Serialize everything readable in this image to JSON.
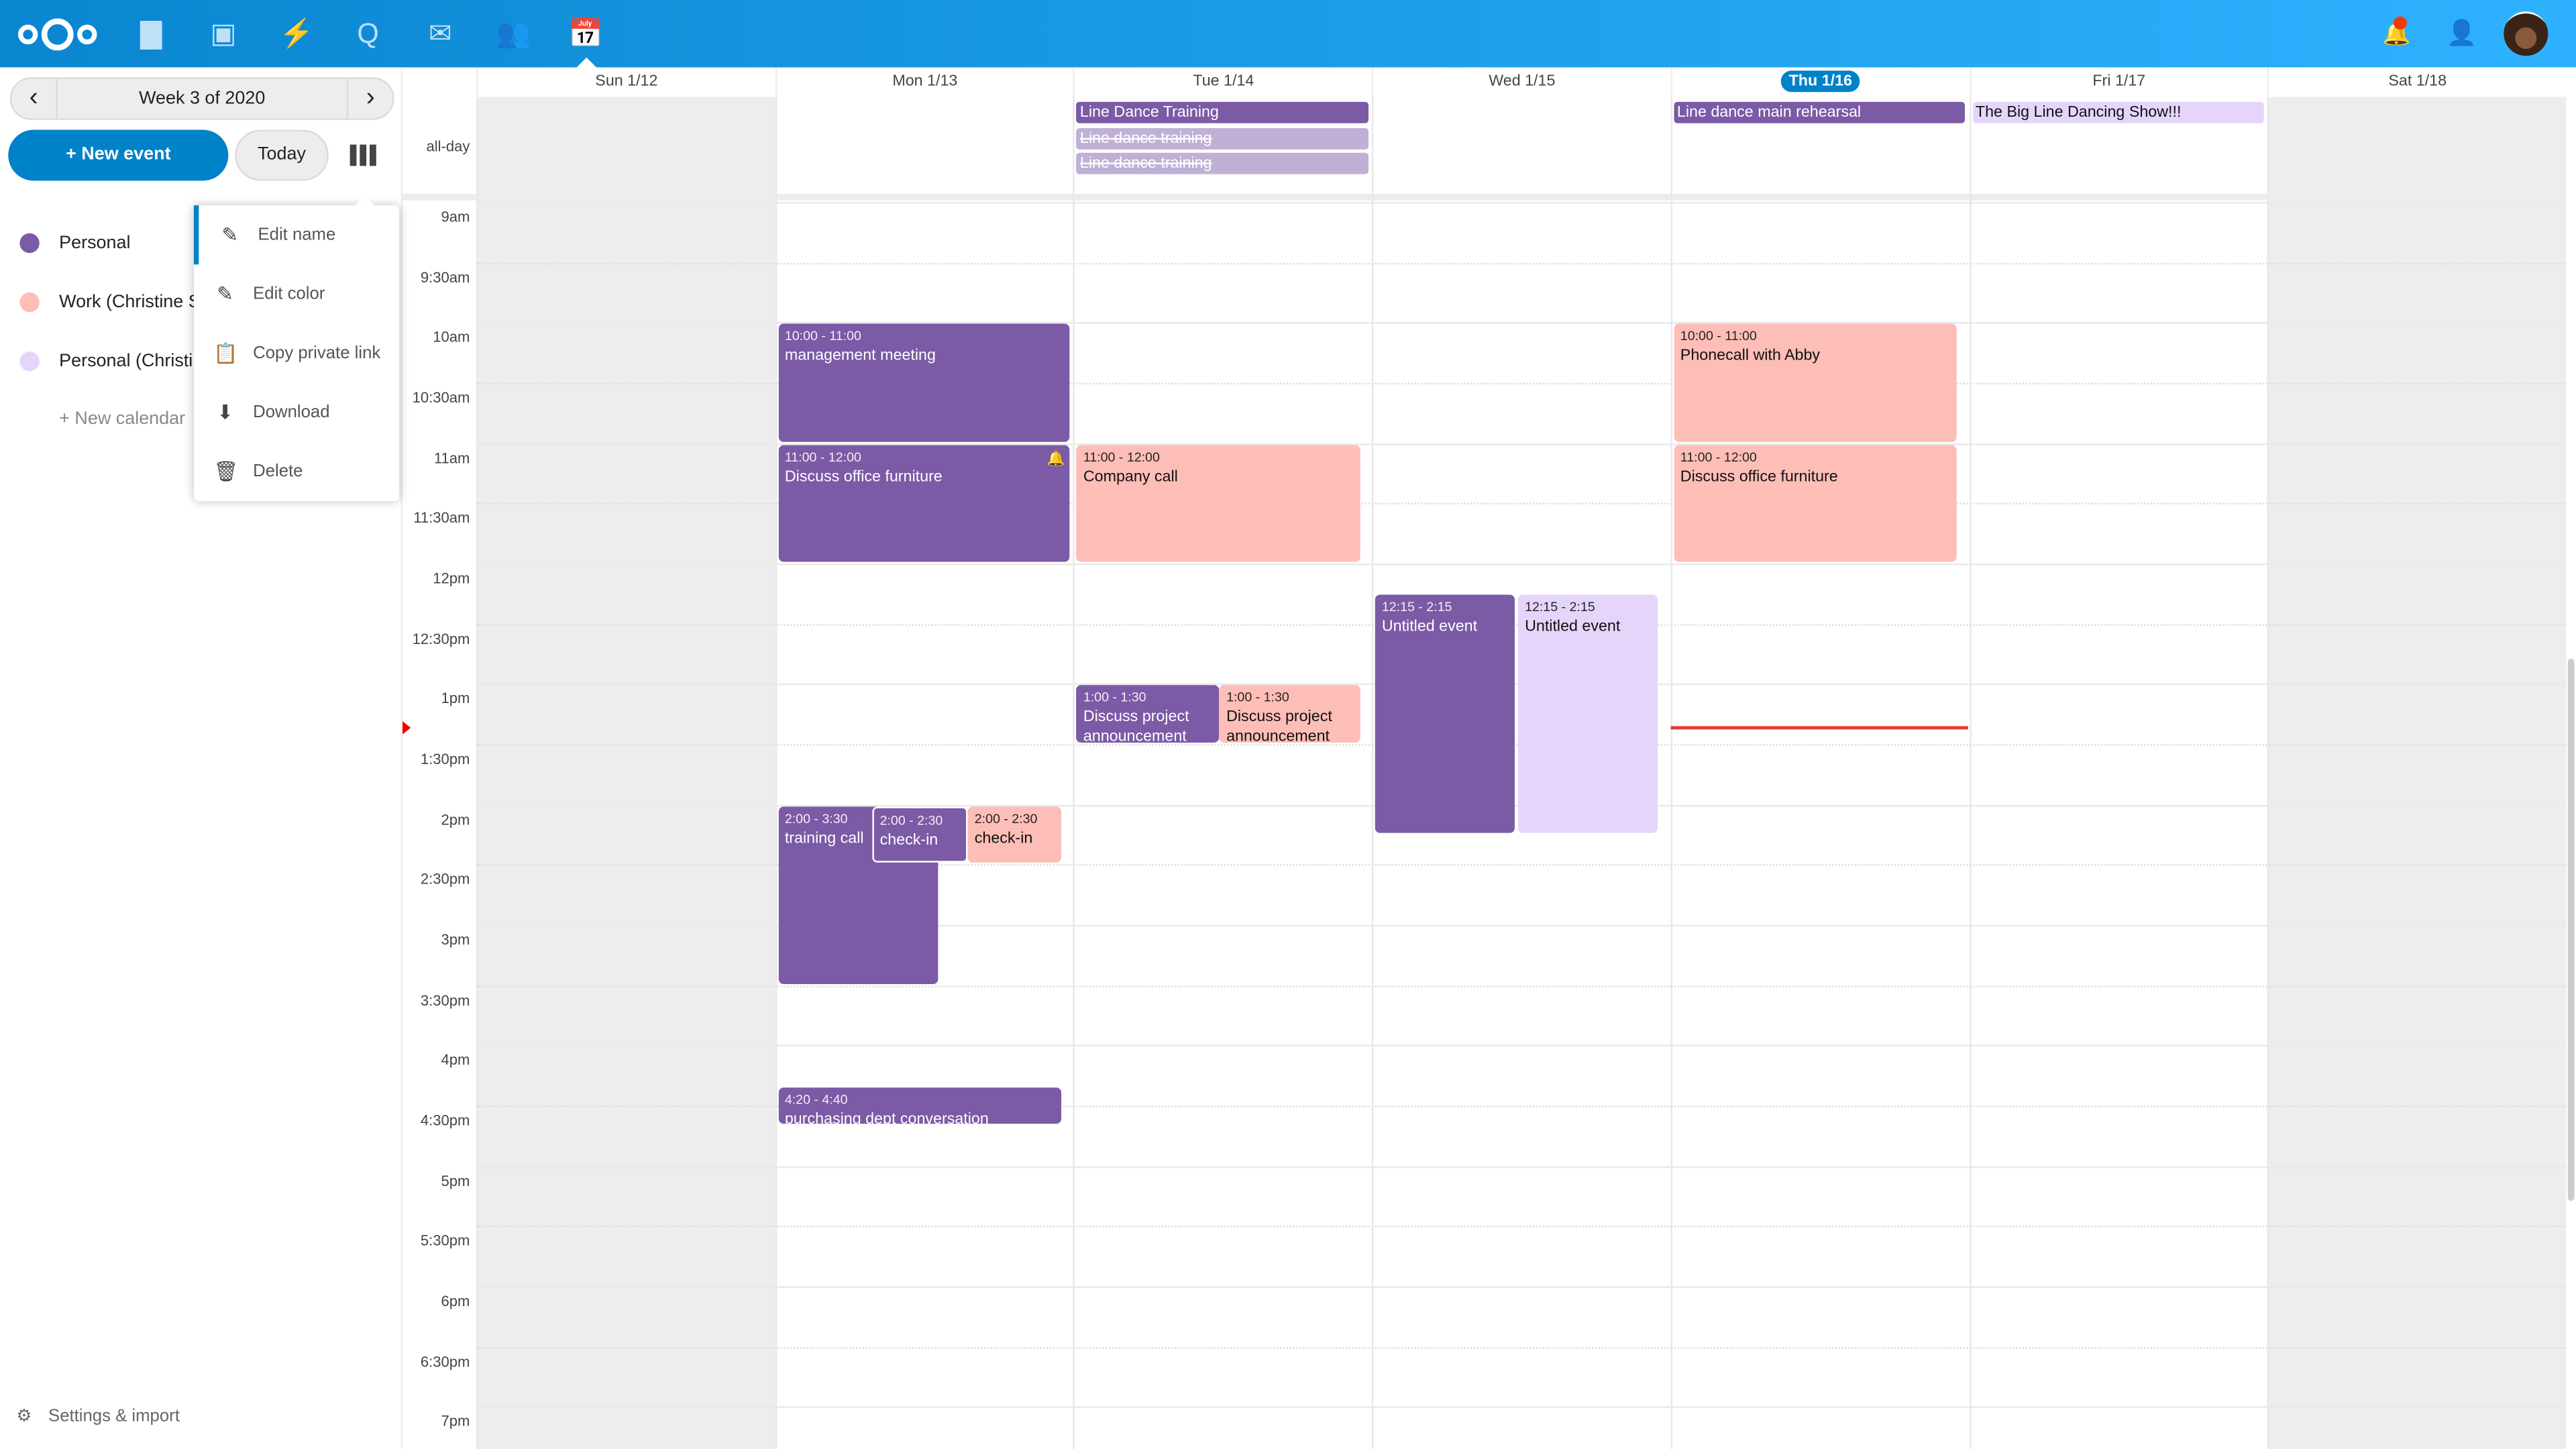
{
  "header": {
    "apps": [
      {
        "name": "files",
        "glyph": "▇"
      },
      {
        "name": "photos",
        "glyph": "▣"
      },
      {
        "name": "activity",
        "glyph": "⚡"
      },
      {
        "name": "talk",
        "glyph": "Q"
      },
      {
        "name": "mail",
        "glyph": "✉"
      },
      {
        "name": "contacts",
        "glyph": "👥"
      },
      {
        "name": "calendar",
        "glyph": "📅"
      }
    ],
    "active_app": "calendar",
    "notification_badge": true
  },
  "sidebar": {
    "week_label": "Week 3 of 2020",
    "prev": "‹",
    "next": "›",
    "new_event": "+ New event",
    "today": "Today",
    "calendars": [
      {
        "name": "Personal",
        "color": "#7b5aa6"
      },
      {
        "name": "Work (Christine S",
        "color": "#fdbeb7"
      },
      {
        "name": "Personal (Christi",
        "color": "#e5d5fb"
      }
    ],
    "new_calendar": "+ New calendar",
    "menu": [
      {
        "icon": "pencil",
        "glyph": "✎",
        "label": "Edit name"
      },
      {
        "icon": "pencil",
        "glyph": "✎",
        "label": "Edit color"
      },
      {
        "icon": "clipboard",
        "glyph": "📋",
        "label": "Copy private link"
      },
      {
        "icon": "download",
        "glyph": "⬇",
        "label": "Download"
      },
      {
        "icon": "trash",
        "glyph": "🗑",
        "label": "Delete"
      }
    ],
    "settings": "Settings & import"
  },
  "calendar": {
    "all_day_label": "all-day",
    "days": [
      "Sun 1/12",
      "Mon 1/13",
      "Tue 1/14",
      "Wed 1/15",
      "Thu 1/16",
      "Fri 1/17",
      "Sat 1/18"
    ],
    "today_index": 4,
    "time_labels": [
      "9am",
      "9:30am",
      "10am",
      "10:30am",
      "11am",
      "11:30am",
      "12pm",
      "12:30pm",
      "1pm",
      "1:30pm",
      "2pm",
      "2:30pm",
      "3pm",
      "3:30pm",
      "4pm",
      "4:30pm",
      "5pm",
      "5:30pm",
      "6pm",
      "6:30pm",
      "7pm"
    ],
    "all_day_events": [
      {
        "day": 2,
        "title": "Line Dance Training",
        "style": "purple"
      },
      {
        "day": 2,
        "title": "Line dance training",
        "style": "strike"
      },
      {
        "day": 2,
        "title": "Line dance training",
        "style": "strike"
      },
      {
        "day": 4,
        "title": "Line dance main rehearsal",
        "style": "purple"
      },
      {
        "day": 5,
        "title": "The Big Line Dancing Show!!!",
        "style": "lav"
      }
    ],
    "events": [
      {
        "day": 1,
        "time": "10:00 - 11:00",
        "title": "management meeting",
        "color": "purple",
        "start": 10,
        "end": 11
      },
      {
        "day": 1,
        "time": "11:00 - 12:00",
        "title": "Discuss office furniture",
        "color": "purple",
        "start": 11,
        "end": 12,
        "reminder": true
      },
      {
        "day": 2,
        "time": "11:00 - 12:00",
        "title": "Company call",
        "color": "pink",
        "start": 11,
        "end": 12
      },
      {
        "day": 4,
        "time": "10:00 - 11:00",
        "title": "Phonecall with Abby",
        "color": "pink",
        "start": 10,
        "end": 11
      },
      {
        "day": 4,
        "time": "11:00 - 12:00",
        "title": "Discuss office furniture",
        "color": "pink",
        "start": 11,
        "end": 12
      },
      {
        "day": 3,
        "time": "12:15 - 2:15",
        "title": "Untitled event",
        "color": "purple",
        "start": 12.25,
        "end": 14.25
      },
      {
        "day": 3,
        "time": "12:15 - 2:15",
        "title": "Untitled event",
        "color": "lav",
        "start": 12.25,
        "end": 14.25
      },
      {
        "day": 2,
        "time": "1:00 - 1:30",
        "title": "Discuss project announcement",
        "color": "purple",
        "start": 13,
        "end": 13.5
      },
      {
        "day": 2,
        "time": "1:00 - 1:30",
        "title": "Discuss project announcement",
        "color": "pink",
        "start": 13,
        "end": 13.5
      },
      {
        "day": 1,
        "time": "2:00 - 3:30",
        "title": "training call",
        "color": "purple",
        "start": 14,
        "end": 15.5
      },
      {
        "day": 1,
        "time": "2:00 - 2:30",
        "title": "check-in",
        "color": "purple",
        "start": 14,
        "end": 14.5
      },
      {
        "day": 1,
        "time": "2:00 - 2:30",
        "title": "check-in",
        "color": "pink",
        "start": 14,
        "end": 14.5
      },
      {
        "day": 1,
        "time": "4:20 - 4:40",
        "title": "purchasing dept conversation",
        "color": "purple",
        "start": 16.333,
        "end": 16.667
      }
    ],
    "now": "1:21pm",
    "colors": {
      "purple": "#7b5aa6",
      "pink": "#fdbeb7",
      "lavender": "#e5d5fb",
      "accent": "#0082c9",
      "now": "#e53935"
    }
  }
}
